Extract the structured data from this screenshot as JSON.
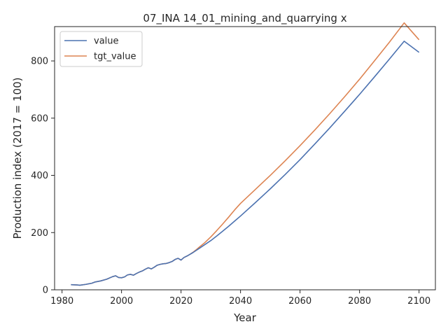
{
  "chart_data": {
    "type": "line",
    "title": "07_INA 14_01_mining_and_quarrying x",
    "xlabel": "Year",
    "ylabel": "Production index (2017 = 100)",
    "xlim": [
      1977.5,
      2105.5
    ],
    "ylim": [
      0,
      920
    ],
    "xticks": [
      1980,
      2000,
      2020,
      2040,
      2060,
      2080,
      2100
    ],
    "yticks": [
      0,
      200,
      400,
      600,
      800
    ],
    "grid": false,
    "legend_position": "top-left",
    "x": [
      1983,
      1985,
      1986,
      1988,
      1990,
      1991,
      1993,
      1995,
      1997,
      1998,
      1999,
      2000,
      2001,
      2002,
      2003,
      2004,
      2005,
      2006,
      2007,
      2008,
      2009,
      2010,
      2011,
      2012,
      2013,
      2014,
      2015,
      2016,
      2017,
      2018,
      2019,
      2020,
      2021,
      2022,
      2023,
      2024,
      2025,
      2026,
      2028,
      2030,
      2032,
      2034,
      2036,
      2038,
      2040,
      2045,
      2050,
      2055,
      2060,
      2065,
      2070,
      2075,
      2080,
      2085,
      2090,
      2095,
      2100
    ],
    "series": [
      {
        "name": "value",
        "color": "#4c72b0",
        "values": [
          18,
          17,
          16,
          19,
          23,
          27,
          31,
          37,
          46,
          49,
          43,
          42,
          45,
          52,
          54,
          51,
          57,
          62,
          66,
          72,
          77,
          73,
          79,
          86,
          89,
          91,
          92,
          95,
          99,
          106,
          110,
          104,
          113,
          118,
          124,
          130,
          137,
          144,
          158,
          172,
          188,
          205,
          222,
          240,
          258,
          305,
          353,
          403,
          455,
          510,
          566,
          624,
          683,
          744,
          806,
          869,
          830
        ]
      },
      {
        "name": "tgt_value",
        "color": "#dd8452",
        "values": [
          18,
          17,
          16,
          19,
          23,
          27,
          31,
          37,
          46,
          49,
          43,
          42,
          45,
          52,
          54,
          51,
          57,
          62,
          66,
          72,
          77,
          73,
          79,
          86,
          89,
          91,
          92,
          95,
          99,
          106,
          110,
          104,
          113,
          118,
          124,
          131,
          139,
          148,
          165,
          185,
          207,
          230,
          254,
          279,
          302,
          351,
          400,
          451,
          504,
          559,
          616,
          675,
          736,
          800,
          865,
          933,
          874
        ]
      }
    ]
  }
}
